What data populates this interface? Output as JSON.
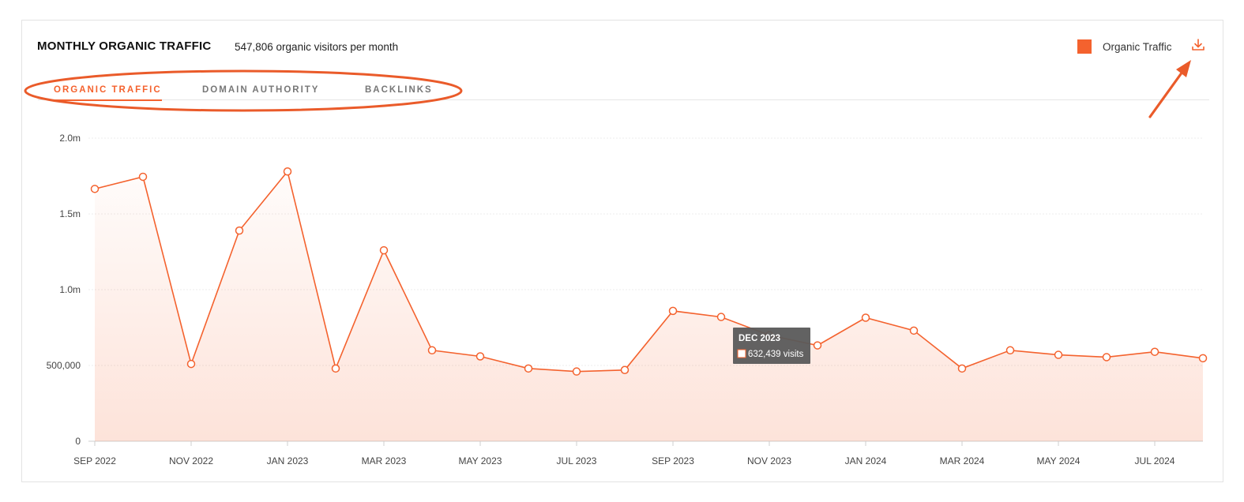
{
  "header": {
    "title": "MONTHLY ORGANIC TRAFFIC",
    "subtitle": "547,806 organic visitors per month"
  },
  "legend": {
    "label": "Organic Traffic"
  },
  "tabs": [
    {
      "label": "ORGANIC TRAFFIC",
      "active": true
    },
    {
      "label": "DOMAIN AUTHORITY",
      "active": false
    },
    {
      "label": "BACKLINKS",
      "active": false
    }
  ],
  "colors": {
    "accent": "#f4622e",
    "annotation": "#ea5b2a",
    "tooltip_bg": "#5a5a5a"
  },
  "icons": {
    "download": "download-icon"
  },
  "tooltip": {
    "title": "DEC 2023",
    "value": "632,439 visits"
  },
  "chart_data": {
    "type": "area",
    "title": "",
    "xlabel": "",
    "ylabel": "",
    "ylim": [
      0,
      2000000
    ],
    "y_ticks": [
      {
        "value": 0,
        "label": "0"
      },
      {
        "value": 500000,
        "label": "500,000"
      },
      {
        "value": 1000000,
        "label": "1.0m"
      },
      {
        "value": 1500000,
        "label": "1.5m"
      },
      {
        "value": 2000000,
        "label": "2.0m"
      }
    ],
    "x_tick_labels": [
      "SEP 2022",
      "NOV 2022",
      "JAN 2023",
      "MAR 2023",
      "MAY 2023",
      "JUL 2023",
      "SEP 2023",
      "NOV 2023",
      "JAN 2024",
      "MAR 2024",
      "MAY 2024",
      "JUL 2024"
    ],
    "grid": true,
    "legend_position": "top-right",
    "series": [
      {
        "name": "Organic Traffic",
        "x": [
          "SEP 2022",
          "OCT 2022",
          "NOV 2022",
          "DEC 2022",
          "JAN 2023",
          "FEB 2023",
          "MAR 2023",
          "APR 2023",
          "MAY 2023",
          "JUN 2023",
          "JUL 2023",
          "AUG 2023",
          "SEP 2023",
          "OCT 2023",
          "NOV 2023",
          "DEC 2023",
          "JAN 2024",
          "FEB 2024",
          "MAR 2024",
          "APR 2024",
          "MAY 2024",
          "JUN 2024",
          "JUL 2024",
          "AUG 2024"
        ],
        "values": [
          1665000,
          1745000,
          510000,
          1390000,
          1780000,
          480000,
          1260000,
          600000,
          560000,
          480000,
          460000,
          470000,
          860000,
          820000,
          700000,
          632439,
          815000,
          730000,
          480000,
          600000,
          570000,
          555000,
          590000,
          547806
        ]
      }
    ]
  }
}
